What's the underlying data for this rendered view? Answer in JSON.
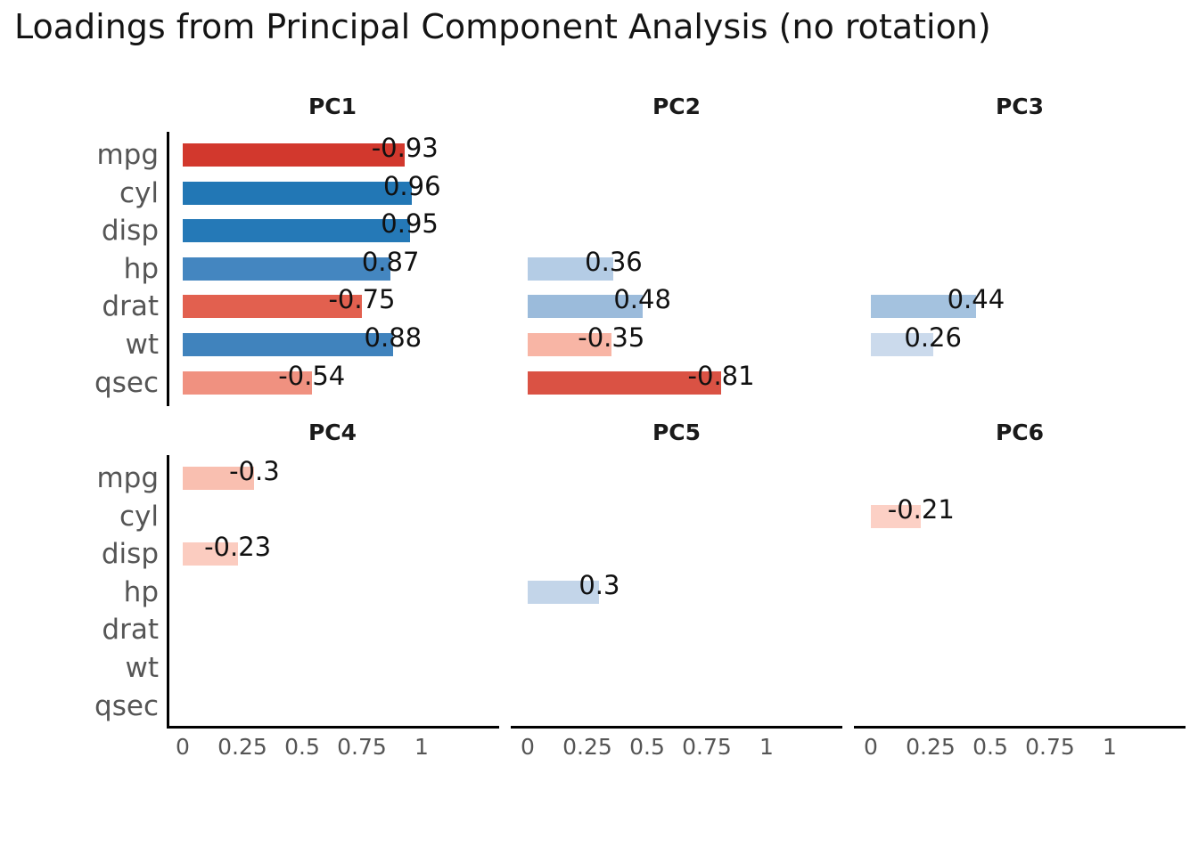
{
  "title": "Loadings from Principal Component Analysis (no rotation)",
  "chart_data": {
    "type": "bar",
    "orientation": "horizontal",
    "title": "Loadings from Principal Component Analysis (no rotation)",
    "categories": [
      "mpg",
      "cyl",
      "disp",
      "hp",
      "drat",
      "wt",
      "qsec"
    ],
    "x_axis": {
      "ticks": [
        0,
        0.25,
        0.5,
        0.75,
        1
      ],
      "tick_labels": [
        "0",
        "0.25",
        "0.5",
        "0.75",
        "1"
      ],
      "range": [
        -0.065,
        1.34
      ],
      "shown_on": [
        "PC4",
        "PC5",
        "PC6"
      ]
    },
    "y_axis": {
      "labels_shown_on": [
        "PC1",
        "PC4"
      ],
      "spine_shown_on": [
        "PC1",
        "PC4"
      ]
    },
    "grid": false,
    "legend": false,
    "panels": [
      {
        "name": "PC1",
        "bars": [
          {
            "var": "mpg",
            "value": -0.93,
            "label": "-0.93",
            "color": "#d2382d"
          },
          {
            "var": "cyl",
            "value": 0.96,
            "label": "0.96",
            "color": "#2277b5"
          },
          {
            "var": "disp",
            "value": 0.95,
            "label": "0.95",
            "color": "#2579b7"
          },
          {
            "var": "hp",
            "value": 0.87,
            "label": "0.87",
            "color": "#4486c0"
          },
          {
            "var": "drat",
            "value": -0.75,
            "label": "-0.75",
            "color": "#e2604f"
          },
          {
            "var": "wt",
            "value": 0.88,
            "label": "0.88",
            "color": "#4083bd"
          },
          {
            "var": "qsec",
            "value": -0.54,
            "label": "-0.54",
            "color": "#f09180"
          }
        ]
      },
      {
        "name": "PC2",
        "bars": [
          {
            "var": "hp",
            "value": 0.36,
            "label": "0.36",
            "color": "#b4cce5"
          },
          {
            "var": "drat",
            "value": 0.48,
            "label": "0.48",
            "color": "#9bbbdb"
          },
          {
            "var": "wt",
            "value": -0.35,
            "label": "-0.35",
            "color": "#f8b5a5"
          },
          {
            "var": "qsec",
            "value": -0.81,
            "label": "-0.81",
            "color": "#da5244"
          }
        ]
      },
      {
        "name": "PC3",
        "bars": [
          {
            "var": "drat",
            "value": 0.44,
            "label": "0.44",
            "color": "#a4c2df"
          },
          {
            "var": "wt",
            "value": 0.26,
            "label": "0.26",
            "color": "#cbdaec"
          }
        ]
      },
      {
        "name": "PC4",
        "bars": [
          {
            "var": "mpg",
            "value": -0.3,
            "label": "-0.3",
            "color": "#f9bfb0"
          },
          {
            "var": "disp",
            "value": -0.23,
            "label": "-0.23",
            "color": "#fbccc0"
          }
        ]
      },
      {
        "name": "PC5",
        "bars": [
          {
            "var": "hp",
            "value": 0.3,
            "label": "0.3",
            "color": "#c3d5e9"
          }
        ]
      },
      {
        "name": "PC6",
        "bars": [
          {
            "var": "cyl",
            "value": -0.21,
            "label": "-0.21",
            "color": "#fcd0c5"
          }
        ]
      }
    ],
    "colors": {
      "positive_strong": "#2277b5",
      "negative_strong": "#d2382d",
      "value_label_text": "#111111",
      "axis_text": "#555555",
      "spine": "#000000",
      "background": "#ffffff"
    }
  }
}
